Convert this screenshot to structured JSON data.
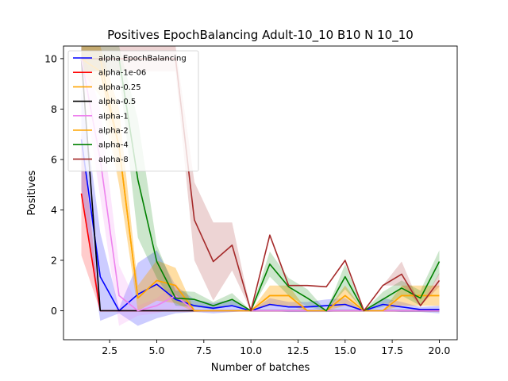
{
  "chart_data": {
    "type": "line",
    "title": "Positives EpochBalancing Adult-10_10 B10 N 10_10",
    "xlabel": "Number of batches",
    "ylabel": "Positives",
    "xlim": [
      0.05,
      20.95
    ],
    "ylim": [
      -1.15,
      10.5
    ],
    "xticks": [
      2.5,
      5.0,
      7.5,
      10.0,
      12.5,
      15.0,
      17.5,
      20.0
    ],
    "xtick_labels": [
      "2.5",
      "5.0",
      "7.5",
      "10.0",
      "12.5",
      "15.0",
      "17.5",
      "20.0"
    ],
    "yticks": [
      0,
      2,
      4,
      6,
      8,
      10
    ],
    "ytick_labels": [
      "0",
      "2",
      "4",
      "6",
      "8",
      "10"
    ],
    "grid": false,
    "legend_position": "top-left",
    "x": [
      1,
      2,
      3,
      4,
      5,
      6,
      7,
      8,
      9,
      10,
      11,
      12,
      13,
      14,
      15,
      16,
      17,
      18,
      19,
      20
    ],
    "series": [
      {
        "name": "alpha EpochBalancing",
        "color": "#0000ff",
        "values": [
          6.8,
          1.35,
          0.0,
          0.65,
          1.05,
          0.45,
          0.2,
          0.1,
          0.2,
          0.0,
          0.25,
          0.15,
          0.15,
          0.2,
          0.25,
          0.0,
          0.25,
          0.15,
          0.05,
          0.05
        ],
        "lower": [
          4.8,
          -0.4,
          -0.1,
          -0.6,
          -0.3,
          -0.1,
          -0.05,
          -0.1,
          -0.05,
          0.0,
          0.0,
          -0.05,
          -0.05,
          -0.05,
          0.0,
          0.0,
          0.0,
          -0.05,
          -0.05,
          -0.1
        ],
        "upper": [
          8.8,
          3.1,
          0.1,
          1.9,
          2.4,
          1.0,
          0.45,
          0.3,
          0.45,
          0.0,
          0.5,
          0.35,
          0.35,
          0.45,
          0.5,
          0.0,
          0.5,
          0.35,
          0.15,
          0.2
        ]
      },
      {
        "name": "alpha-1e-06",
        "color": "#ff0000",
        "values": [
          4.65,
          0.0,
          0.0,
          0.0,
          0.0,
          0.0,
          0.0,
          0.0,
          0.0,
          0.0,
          0.0,
          0.0,
          0.0,
          0.0,
          0.0,
          0.0,
          0.0,
          0.0,
          0.0,
          0.0
        ],
        "lower": [
          2.2,
          0.0,
          0.0,
          0.0,
          0.0,
          0.0,
          0.0,
          0.0,
          0.0,
          0.0,
          0.0,
          0.0,
          0.0,
          0.0,
          0.0,
          0.0,
          0.0,
          0.0,
          0.0,
          0.0
        ],
        "upper": [
          7.1,
          0.0,
          0.0,
          0.0,
          0.0,
          0.0,
          0.0,
          0.0,
          0.0,
          0.0,
          0.0,
          0.0,
          0.0,
          0.0,
          0.0,
          0.0,
          0.0,
          0.0,
          0.0,
          0.0
        ]
      },
      {
        "name": "alpha-0.25",
        "color": "#ffa500",
        "values": [
          10.0,
          9.5,
          6.5,
          0.5,
          1.2,
          1.0,
          0.0,
          0.0,
          0.0,
          0.0,
          0.6,
          0.6,
          0.0,
          0.0,
          0.6,
          0.0,
          0.0,
          0.6,
          0.6,
          0.6
        ],
        "lower": [
          9.5,
          8.5,
          5.0,
          0.0,
          0.4,
          0.3,
          -0.05,
          0.0,
          0.0,
          0.0,
          0.2,
          0.2,
          0.0,
          0.0,
          0.2,
          0.0,
          0.0,
          0.2,
          0.2,
          0.2
        ],
        "upper": [
          10.5,
          10.5,
          8.0,
          1.0,
          2.0,
          1.7,
          0.05,
          0.0,
          0.0,
          0.0,
          1.0,
          1.0,
          0.0,
          0.0,
          1.0,
          0.0,
          0.0,
          1.0,
          1.0,
          1.0
        ]
      },
      {
        "name": "alpha-0.5",
        "color": "#000000",
        "values": [
          10.0,
          0.0,
          0.0,
          0.0,
          0.0,
          0.0,
          0.0,
          0.0,
          0.0,
          0.0,
          0.0,
          0.0,
          0.0,
          0.0,
          0.0,
          0.0,
          0.0,
          0.0,
          0.0,
          0.0
        ],
        "lower": [
          9.5,
          0.0,
          0.0,
          0.0,
          0.0,
          0.0,
          0.0,
          0.0,
          0.0,
          0.0,
          0.0,
          0.0,
          0.0,
          0.0,
          0.0,
          0.0,
          0.0,
          0.0,
          0.0,
          0.0
        ],
        "upper": [
          10.5,
          0.0,
          0.0,
          0.0,
          0.0,
          0.0,
          0.0,
          0.0,
          0.0,
          0.0,
          0.0,
          0.0,
          0.0,
          0.0,
          0.0,
          0.0,
          0.0,
          0.0,
          0.0,
          0.0
        ]
      },
      {
        "name": "alpha-1",
        "color": "#ee82ee",
        "values": [
          10.0,
          6.0,
          0.6,
          0.0,
          0.2,
          0.6,
          0.0,
          0.0,
          0.0,
          0.0,
          0.0,
          0.0,
          0.0,
          0.0,
          0.0,
          0.0,
          0.0,
          0.0,
          0.0,
          0.0
        ],
        "lower": [
          9.5,
          4.5,
          -0.6,
          -0.2,
          -0.1,
          0.1,
          0.0,
          0.0,
          0.0,
          0.0,
          0.0,
          0.0,
          0.0,
          0.0,
          0.0,
          0.0,
          0.0,
          0.0,
          0.0,
          0.0
        ],
        "upper": [
          10.5,
          8.0,
          1.8,
          0.2,
          0.5,
          1.1,
          0.0,
          0.0,
          0.0,
          0.0,
          0.0,
          0.0,
          0.0,
          0.0,
          0.0,
          0.0,
          0.0,
          0.0,
          0.0,
          0.0
        ]
      },
      {
        "name": "alpha-2",
        "color": "#ffa500",
        "values": [
          10.0,
          10.0,
          6.5,
          0.5,
          1.2,
          1.0,
          0.0,
          0.0,
          0.0,
          0.0,
          0.6,
          0.6,
          0.0,
          0.0,
          0.6,
          0.0,
          0.0,
          0.6,
          0.6,
          0.6
        ],
        "lower": [
          9.5,
          9.5,
          5.0,
          0.0,
          0.4,
          0.3,
          -0.05,
          0.0,
          0.0,
          0.0,
          0.2,
          0.2,
          0.0,
          0.0,
          0.2,
          0.0,
          0.0,
          0.2,
          0.2,
          0.2
        ],
        "upper": [
          10.5,
          10.5,
          8.0,
          1.0,
          2.0,
          1.7,
          0.05,
          0.0,
          0.0,
          0.0,
          1.0,
          1.0,
          0.0,
          0.0,
          1.0,
          0.0,
          0.0,
          1.0,
          1.0,
          1.0
        ]
      },
      {
        "name": "alpha-4",
        "color": "#008000",
        "values": [
          10.0,
          10.0,
          10.0,
          5.2,
          1.95,
          0.5,
          0.45,
          0.2,
          0.45,
          0.0,
          1.85,
          0.95,
          0.5,
          0.0,
          1.35,
          0.0,
          0.45,
          0.9,
          0.5,
          1.95
        ],
        "lower": [
          9.5,
          9.5,
          9.5,
          2.9,
          1.3,
          0.2,
          0.15,
          0.05,
          0.2,
          0.0,
          1.35,
          0.6,
          0.15,
          0.0,
          0.85,
          0.0,
          0.15,
          0.6,
          0.2,
          1.45
        ],
        "upper": [
          10.5,
          10.5,
          10.5,
          7.6,
          2.6,
          0.8,
          0.75,
          0.35,
          0.7,
          0.0,
          2.35,
          1.3,
          0.85,
          0.0,
          1.85,
          0.0,
          0.75,
          1.2,
          0.8,
          2.4
        ]
      },
      {
        "name": "alpha-8",
        "color": "#a52a2a",
        "values": [
          10.0,
          10.0,
          10.0,
          10.0,
          10.0,
          10.0,
          3.6,
          1.95,
          2.6,
          0.0,
          3.0,
          1.0,
          1.0,
          0.95,
          2.0,
          0.0,
          1.0,
          1.45,
          0.2,
          1.2
        ],
        "lower": [
          9.5,
          9.5,
          9.5,
          9.5,
          9.5,
          9.5,
          2.0,
          0.4,
          1.6,
          0.0,
          3.0,
          1.0,
          1.0,
          0.95,
          2.0,
          0.0,
          1.0,
          1.0,
          0.2,
          0.95
        ],
        "upper": [
          10.5,
          10.5,
          10.5,
          10.5,
          10.5,
          10.5,
          5.1,
          3.5,
          3.5,
          0.0,
          3.0,
          1.0,
          1.0,
          0.95,
          2.0,
          0.0,
          1.0,
          1.95,
          0.2,
          1.5
        ]
      }
    ]
  }
}
